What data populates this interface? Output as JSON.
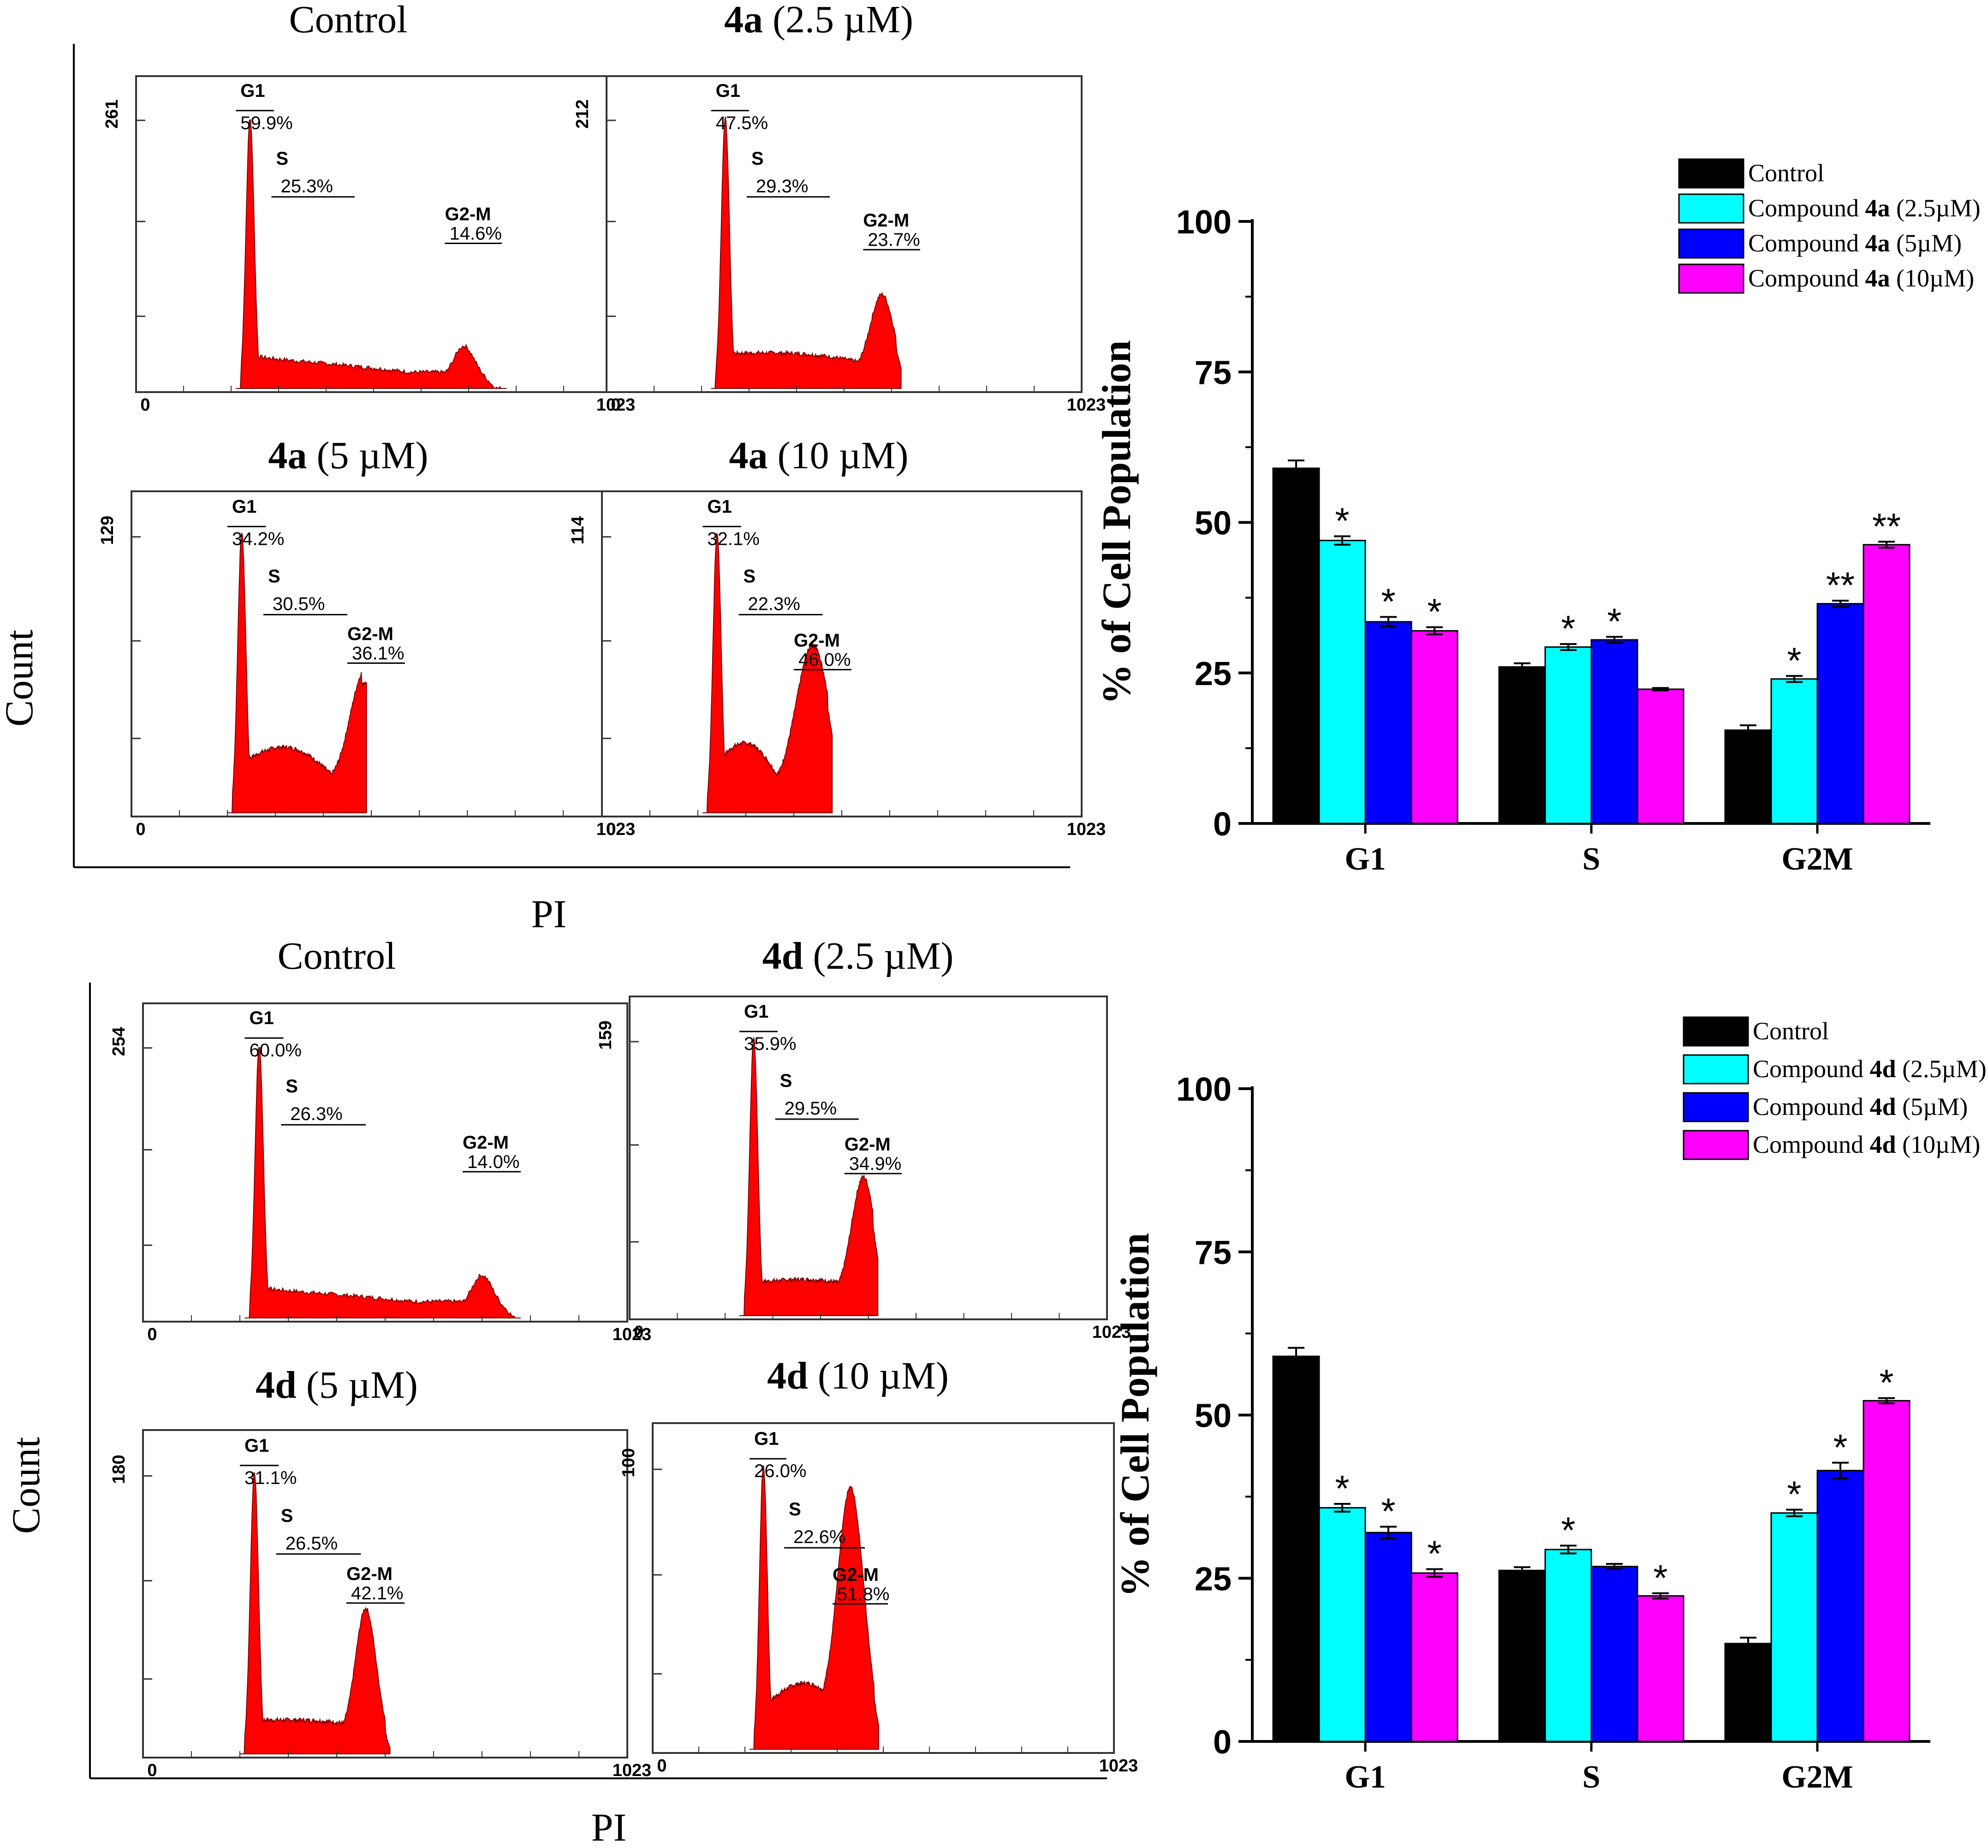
{
  "figure": {
    "sections": [
      {
        "id": "4a",
        "y_axis_label": "Count",
        "x_axis_label": "PI",
        "panels": [
          {
            "title_bold": "",
            "title_rest": "Control",
            "y_max_label": "261",
            "x_min_label": "0",
            "x_max_label": "1023",
            "gates": [
              {
                "name": "G1",
                "pct": "59.9%"
              },
              {
                "name": "S",
                "pct": "25.3%"
              },
              {
                "name": "G2-M",
                "pct": "14.6%"
              }
            ]
          },
          {
            "title_bold": "4a",
            "title_rest": " (2.5 µM)",
            "y_max_label": "212",
            "x_min_label": "0",
            "x_max_label": "1023",
            "gates": [
              {
                "name": "G1",
                "pct": "47.5%"
              },
              {
                "name": "S",
                "pct": "29.3%"
              },
              {
                "name": "G2-M",
                "pct": "23.7%"
              }
            ]
          },
          {
            "title_bold": "4a",
            "title_rest": " (5 µM)",
            "y_max_label": "129",
            "x_min_label": "0",
            "x_max_label": "1023",
            "gates": [
              {
                "name": "G1",
                "pct": "34.2%"
              },
              {
                "name": "S",
                "pct": "30.5%"
              },
              {
                "name": "G2-M",
                "pct": "36.1%"
              }
            ]
          },
          {
            "title_bold": "4a",
            "title_rest": " (10 µM)",
            "y_max_label": "114",
            "x_min_label": "0",
            "x_max_label": "1023",
            "gates": [
              {
                "name": "G1",
                "pct": "32.1%"
              },
              {
                "name": "S",
                "pct": "22.3%"
              },
              {
                "name": "G2-M",
                "pct": "46.0%"
              }
            ]
          }
        ]
      },
      {
        "id": "4d",
        "y_axis_label": "Count",
        "x_axis_label": "PI",
        "panels": [
          {
            "title_bold": "",
            "title_rest": "Control",
            "y_max_label": "254",
            "x_min_label": "0",
            "x_max_label": "1023",
            "gates": [
              {
                "name": "G1",
                "pct": "60.0%"
              },
              {
                "name": "S",
                "pct": "26.3%"
              },
              {
                "name": "G2-M",
                "pct": "14.0%"
              }
            ]
          },
          {
            "title_bold": "4d",
            "title_rest": " (2.5 µM)",
            "y_max_label": "159",
            "x_min_label": "0",
            "x_max_label": "1023",
            "gates": [
              {
                "name": "G1",
                "pct": "35.9%"
              },
              {
                "name": "S",
                "pct": "29.5%"
              },
              {
                "name": "G2-M",
                "pct": "34.9%"
              }
            ]
          },
          {
            "title_bold": "4d",
            "title_rest": " (5 µM)",
            "y_max_label": "180",
            "x_min_label": "0",
            "x_max_label": "1023",
            "gates": [
              {
                "name": "G1",
                "pct": "31.1%"
              },
              {
                "name": "S",
                "pct": "26.5%"
              },
              {
                "name": "G2-M",
                "pct": "42.1%"
              }
            ]
          },
          {
            "title_bold": "4d",
            "title_rest": " (10 µM)",
            "y_max_label": "100",
            "x_min_label": "0",
            "x_max_label": "1023",
            "gates": [
              {
                "name": "G1",
                "pct": "26.0%"
              },
              {
                "name": "S",
                "pct": "22.6%"
              },
              {
                "name": "G2-M",
                "pct": "51.8%"
              }
            ]
          }
        ]
      }
    ],
    "colors": {
      "histogram_fill": "#ff0000",
      "control": "#000000",
      "dose_2_5": "#00ffff",
      "dose_5": "#0000ff",
      "dose_10": "#ff00ff"
    }
  },
  "chart_data": [
    {
      "type": "bar",
      "title": "",
      "xlabel": "",
      "ylabel": "% of Cell Population",
      "ylim": [
        0,
        100
      ],
      "yticks": [
        "0",
        "25",
        "50",
        "75",
        "100"
      ],
      "categories": [
        "G1",
        "S",
        "G2M"
      ],
      "legend_position": "top-right",
      "series": [
        {
          "name": "Control",
          "legend_bold": "",
          "legend_tail": "",
          "color": "#000000",
          "values": [
            59,
            26,
            15.5
          ],
          "errors": [
            1.3,
            0.6,
            0.8
          ],
          "marks": [
            "",
            "",
            ""
          ]
        },
        {
          "name": "Compound 4a (2.5µM)",
          "legend_bold": "4a",
          "legend_tail": " (2.5µM)",
          "color": "#00ffff",
          "values": [
            47,
            29.3,
            24
          ],
          "errors": [
            0.7,
            0.5,
            0.5
          ],
          "marks": [
            "*",
            "*",
            "*"
          ]
        },
        {
          "name": "Compound 4a (5µM)",
          "legend_bold": "4a",
          "legend_tail": " (5µM)",
          "color": "#0000ff",
          "values": [
            33.5,
            30.5,
            36.5
          ],
          "errors": [
            0.8,
            0.5,
            0.5
          ],
          "marks": [
            "*",
            "*",
            "**"
          ]
        },
        {
          "name": "Compound 4a (10µM)",
          "legend_bold": "4a",
          "legend_tail": " (10µM)",
          "color": "#ff00ff",
          "values": [
            32,
            22.3,
            46.3
          ],
          "errors": [
            0.6,
            0.2,
            0.5
          ],
          "marks": [
            "*",
            "",
            "**"
          ]
        }
      ]
    },
    {
      "type": "bar",
      "title": "",
      "xlabel": "",
      "ylabel": "% of Cell Population",
      "ylim": [
        0,
        100
      ],
      "yticks": [
        "0",
        "25",
        "50",
        "75",
        "100"
      ],
      "categories": [
        "G1",
        "S",
        "G2M"
      ],
      "legend_position": "top-right",
      "series": [
        {
          "name": "Control",
          "legend_bold": "",
          "legend_tail": "",
          "color": "#000000",
          "values": [
            59,
            26.2,
            15
          ],
          "errors": [
            1.3,
            0.5,
            0.9
          ],
          "marks": [
            "",
            "",
            ""
          ]
        },
        {
          "name": "Compound 4d (2.5µM)",
          "legend_bold": "4d",
          "legend_tail": " (2.5µM)",
          "color": "#00ffff",
          "values": [
            35.8,
            29.4,
            35
          ],
          "errors": [
            0.6,
            0.6,
            0.5
          ],
          "marks": [
            "*",
            "*",
            "*"
          ]
        },
        {
          "name": "Compound 4d (5µM)",
          "legend_bold": "4d",
          "legend_tail": " (5µM)",
          "color": "#0000ff",
          "values": [
            32,
            26.8,
            41.5
          ],
          "errors": [
            0.9,
            0.4,
            1.2
          ],
          "marks": [
            "*",
            "",
            "*"
          ]
        },
        {
          "name": "Compound 4d (10µM)",
          "legend_bold": "4d",
          "legend_tail": " (10µM)",
          "color": "#ff00ff",
          "values": [
            25.8,
            22.3,
            52.2
          ],
          "errors": [
            0.6,
            0.4,
            0.4
          ],
          "marks": [
            "*",
            "*",
            "*"
          ]
        }
      ]
    }
  ]
}
